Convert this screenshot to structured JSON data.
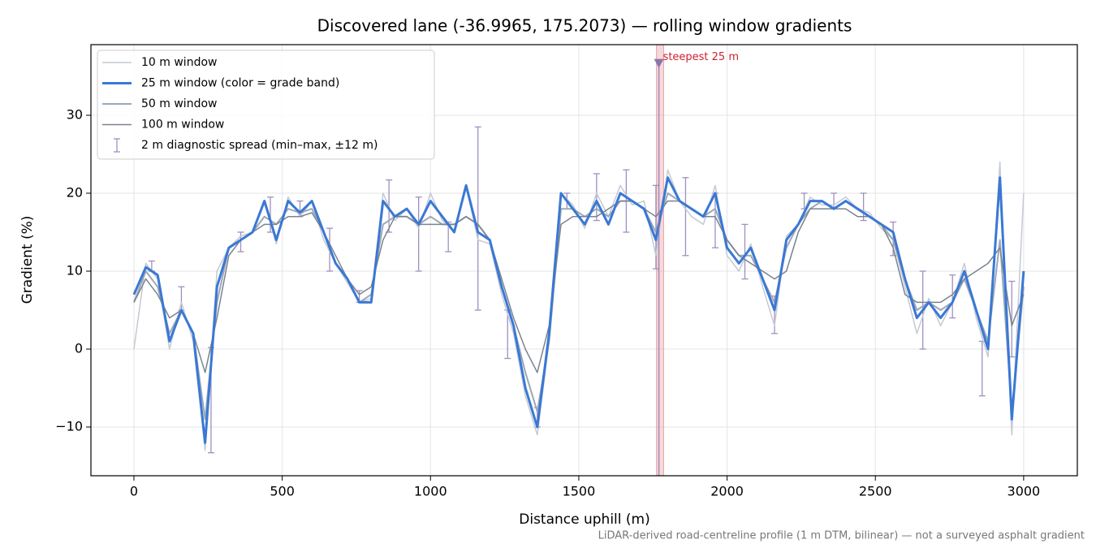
{
  "chart_data": {
    "type": "line",
    "title": "Discovered lane (-36.9965, 175.2073) — rolling window gradients",
    "xlabel": "Distance uphill (m)",
    "ylabel": "Gradient (%)",
    "footnote": "LiDAR-derived road-centreline profile (1 m DTM, bilinear) — not a surveyed asphalt gradient",
    "xlim": [
      -145,
      3181
    ],
    "ylim": [
      -16.25,
      39.06
    ],
    "xticks": [
      0,
      500,
      1000,
      1500,
      2000,
      2500,
      3000
    ],
    "yticks": [
      {
        "value": -10,
        "label": "−10"
      },
      0,
      10,
      20,
      30
    ],
    "grid": true,
    "legend": "upper left",
    "x": [
      0,
      40,
      80,
      120,
      160,
      200,
      240,
      280,
      320,
      360,
      400,
      440,
      480,
      520,
      560,
      600,
      640,
      680,
      720,
      760,
      800,
      840,
      880,
      920,
      960,
      1000,
      1040,
      1080,
      1120,
      1160,
      1200,
      1240,
      1280,
      1320,
      1360,
      1400,
      1440,
      1480,
      1520,
      1560,
      1600,
      1640,
      1680,
      1720,
      1760,
      1800,
      1840,
      1880,
      1920,
      1960,
      2000,
      2040,
      2080,
      2120,
      2160,
      2200,
      2240,
      2280,
      2320,
      2360,
      2400,
      2440,
      2480,
      2520,
      2560,
      2600,
      2640,
      2680,
      2720,
      2760,
      2800,
      2840,
      2880,
      2920,
      2960,
      3000
    ],
    "series": [
      {
        "name": "10 m window",
        "color": "#c3cad4",
        "width": 1.5,
        "values": [
          0,
          11,
          9,
          0,
          6,
          1,
          -13,
          10,
          13,
          14.5,
          15,
          19,
          13.5,
          19.5,
          17,
          19,
          14,
          11,
          8.5,
          6,
          6.5,
          20,
          16.5,
          18,
          15.5,
          20,
          16.5,
          15,
          21,
          14,
          13.5,
          7,
          2,
          -6,
          -11,
          1,
          20,
          18.5,
          15.5,
          20,
          17,
          21,
          18.5,
          19,
          12,
          23,
          19,
          17,
          16,
          21,
          12,
          10,
          13.5,
          8,
          3,
          14.5,
          16,
          19.5,
          18.5,
          18.5,
          19.5,
          18,
          17.5,
          15.5,
          14,
          8,
          2,
          6.5,
          3,
          6,
          11,
          4,
          -1,
          24,
          -11,
          20
        ]
      },
      {
        "name": "50 m window",
        "color": "#9aa8b8",
        "width": 2,
        "values": [
          6,
          10,
          8,
          2,
          5,
          2,
          -9,
          6,
          13,
          14,
          15,
          17,
          16,
          18,
          17.5,
          18,
          15,
          11,
          9,
          6,
          7,
          16,
          17,
          17,
          16,
          17,
          16,
          16,
          17,
          16,
          14,
          8,
          3,
          -3,
          -8,
          1,
          18,
          18,
          17,
          18,
          17,
          19,
          19,
          18,
          15,
          20,
          19,
          18,
          17,
          18,
          14,
          12,
          12,
          9,
          6,
          13,
          16,
          18,
          19,
          18,
          19,
          18,
          17,
          16,
          14,
          9,
          5,
          6,
          5,
          6,
          9,
          5,
          1,
          14,
          -8,
          8
        ]
      },
      {
        "name": "100 m window",
        "color": "#7b8390",
        "width": 1.5,
        "values": [
          6,
          9,
          7,
          4,
          5,
          2,
          -3,
          4,
          12,
          14,
          15,
          16,
          16,
          17,
          17,
          17.5,
          15,
          12,
          9,
          7,
          8,
          14,
          17,
          17,
          16,
          16,
          16,
          16,
          17,
          16,
          14,
          9,
          4,
          0,
          -3,
          3,
          16,
          17,
          17,
          17,
          18,
          19,
          19,
          18,
          17,
          19,
          19,
          18,
          17,
          17,
          14,
          12,
          11,
          10,
          9,
          10,
          15,
          18,
          18,
          18,
          18,
          17,
          17,
          16,
          13,
          7,
          6,
          6,
          6,
          7,
          9,
          10,
          11,
          13,
          3,
          7
        ]
      },
      {
        "name": "25 m window (color = grade band)",
        "color": "#3a78d4",
        "width": 3,
        "band": {
          "threshold": 20,
          "color": "#e08a00"
        },
        "values": [
          7,
          10.5,
          9.5,
          1,
          5,
          2,
          -12,
          8,
          13,
          14,
          15,
          19,
          14,
          19,
          17.5,
          19,
          15,
          11,
          9,
          6,
          6,
          19,
          17,
          18,
          16,
          19,
          17,
          15,
          21,
          15,
          14,
          8,
          3,
          -5,
          -10,
          2,
          20,
          18,
          16,
          19,
          16,
          20,
          19,
          18,
          14,
          22,
          19,
          18,
          17,
          20,
          13,
          11,
          13,
          9,
          5,
          14,
          16,
          19,
          19,
          18,
          19,
          18,
          17,
          16,
          15,
          9,
          4,
          6,
          4,
          6,
          10,
          5,
          0,
          22,
          -9,
          10
        ]
      }
    ],
    "errorbars": {
      "name": "2 m diagnostic spread (min–max, ±12 m)",
      "color": "#9e90c0",
      "x": [
        60,
        160,
        260,
        360,
        460,
        560,
        660,
        760,
        860,
        960,
        1060,
        1160,
        1260,
        1360,
        1460,
        1560,
        1660,
        1760,
        1860,
        1960,
        2060,
        2160,
        2260,
        2360,
        2460,
        2560,
        2660,
        2760,
        2860,
        2960
      ],
      "low": [
        10,
        5,
        -13.3,
        12.5,
        15,
        17,
        10,
        6,
        15,
        10,
        12.5,
        5,
        -1.2,
        -10,
        18,
        16.5,
        15,
        10.3,
        12,
        13,
        9,
        2,
        18,
        18,
        16.5,
        12,
        0,
        4,
        -6,
        -1
      ],
      "high": [
        11.3,
        8,
        0.2,
        15,
        19.5,
        19,
        15.5,
        7.5,
        21.7,
        19.5,
        16.3,
        28.5,
        5,
        -7.5,
        20,
        22.5,
        23,
        21,
        22,
        20,
        16,
        6.8,
        20,
        20,
        20,
        16.3,
        10,
        9.5,
        1,
        8.7
      ]
    },
    "steepest": {
      "label": "steepest 25 m",
      "x": 1770,
      "y": 36.7,
      "span": [
        1762,
        1786
      ],
      "color": "#e8a0a8",
      "marker_color": "#8877aa",
      "label_color": "#cc2233"
    }
  }
}
